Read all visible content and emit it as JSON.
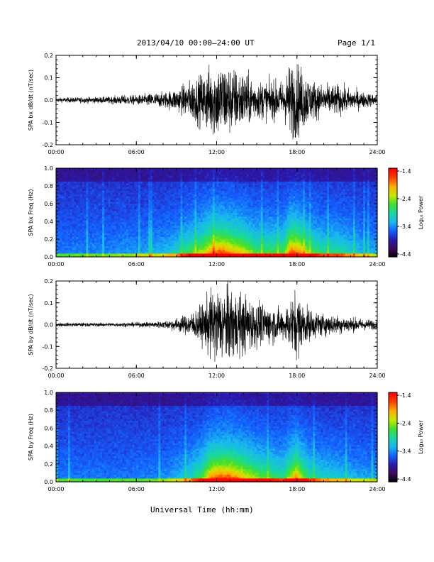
{
  "header": {
    "title": "2013/04/10  00:00–24:00 UT",
    "page": "Page 1/1"
  },
  "x_axis": {
    "title": "Universal Time (hh:mm)",
    "ticks": [
      "00:00",
      "06:00",
      "12:00",
      "18:00",
      "24:00"
    ]
  },
  "colorscale": {
    "label": "Log₁₀ Power",
    "ticks": [
      "-1.4",
      "-2.4",
      "-3.4",
      "-4.4"
    ],
    "colors": [
      "#000000",
      "#3c0a5a",
      "#2a1ab0",
      "#1460ff",
      "#18b8f0",
      "#18d8a0",
      "#40e030",
      "#c8e800",
      "#ffb000",
      "#ff4000",
      "#ff0000"
    ]
  },
  "chart_data": [
    {
      "type": "line",
      "ylabel": "SPA bx dB/dt (nT/sec)",
      "ylim": [
        -0.2,
        0.2
      ],
      "yticks": [
        "0.2",
        "0.1",
        "0.0",
        "-0.1",
        "-0.2"
      ],
      "xlim": [
        0,
        24
      ],
      "envelope": {
        "x": [
          0,
          2,
          4,
          5,
          6,
          7,
          8,
          9,
          10,
          11,
          11.5,
          12,
          12.5,
          13,
          14,
          15,
          16,
          17,
          17.5,
          18,
          19,
          20,
          21,
          22,
          23,
          24
        ],
        "amplitude": [
          0.012,
          0.015,
          0.018,
          0.025,
          0.025,
          0.035,
          0.04,
          0.06,
          0.1,
          0.14,
          0.18,
          0.2,
          0.2,
          0.18,
          0.15,
          0.1,
          0.1,
          0.1,
          0.2,
          0.2,
          0.11,
          0.08,
          0.08,
          0.06,
          0.04,
          0.03
        ]
      }
    },
    {
      "type": "heatmap",
      "ylabel": "SPA bx Freq (Hz)",
      "ylim": [
        0.0,
        1.0
      ],
      "yticks": [
        "1.0",
        "0.8",
        "0.6",
        "0.4",
        "0.2",
        "0.0"
      ],
      "xlim": [
        0,
        24
      ],
      "zlim": [
        -4.4,
        -1.4
      ],
      "zlabel": "Log₁₀ Power"
    },
    {
      "type": "line",
      "ylabel": "SPA by dB/dt (nT/sec)",
      "ylim": [
        -0.2,
        0.2
      ],
      "yticks": [
        "0.2",
        "0.1",
        "0.0",
        "-0.1",
        "-0.2"
      ],
      "xlim": [
        0,
        24
      ],
      "envelope": {
        "x": [
          0,
          2,
          4,
          6,
          7,
          8,
          9,
          10,
          11,
          11.5,
          12,
          12.5,
          13,
          14,
          15,
          16,
          17,
          18,
          18.3,
          19,
          20,
          21,
          22,
          23,
          24
        ],
        "amplitude": [
          0.01,
          0.01,
          0.01,
          0.012,
          0.015,
          0.02,
          0.035,
          0.06,
          0.11,
          0.18,
          0.2,
          0.2,
          0.2,
          0.16,
          0.12,
          0.1,
          0.08,
          0.19,
          0.13,
          0.08,
          0.06,
          0.05,
          0.04,
          0.03,
          0.025
        ]
      }
    },
    {
      "type": "heatmap",
      "ylabel": "SPA by Freq (Hz)",
      "ylim": [
        0.0,
        1.0
      ],
      "yticks": [
        "1.0",
        "0.8",
        "0.6",
        "0.4",
        "0.2",
        "0.0"
      ],
      "xlim": [
        0,
        24
      ],
      "zlim": [
        -4.4,
        -1.4
      ],
      "zlabel": "Log₁₀ Power"
    }
  ]
}
